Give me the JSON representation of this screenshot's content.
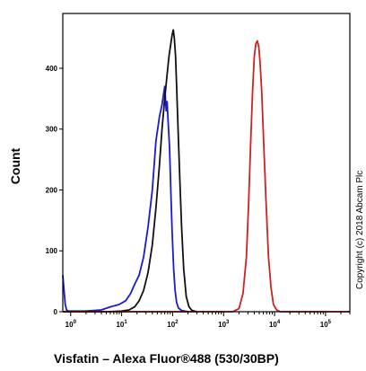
{
  "chart_data": {
    "type": "line",
    "xlabel": "Visfatin – Alexa Fluor®488 (530/30BP)",
    "ylabel": "Count",
    "x_scale": "log",
    "xlim": [
      0.7,
      300000
    ],
    "ylim": [
      0,
      490
    ],
    "y_ticks": [
      0,
      100,
      200,
      300,
      400
    ],
    "x_ticks": [
      {
        "value": 1,
        "base": "10",
        "exp": "0"
      },
      {
        "value": 10,
        "base": "10",
        "exp": "1"
      },
      {
        "value": 100,
        "base": "10",
        "exp": "2"
      },
      {
        "value": 1000,
        "base": "10",
        "exp": "3"
      },
      {
        "value": 10000,
        "base": "10",
        "exp": "4"
      },
      {
        "value": 100000,
        "base": "10",
        "exp": "5"
      }
    ],
    "grid": false,
    "series": [
      {
        "color": "#1a1ad6",
        "x": [
          0.7,
          0.74,
          0.78,
          0.83,
          0.9,
          1.0,
          2.0,
          4.0,
          6.0,
          9.0,
          12.0,
          15.0,
          18.0,
          22.0,
          27.0,
          33.0,
          40.0,
          47.0,
          55.0,
          62.0,
          70.0,
          75.0,
          78.0,
          82.0,
          87.0,
          92.0,
          98.0,
          105.0,
          112.0,
          120.0,
          130.0,
          150.0,
          200.0
        ],
        "y": [
          60,
          35,
          12,
          3,
          1,
          1,
          1,
          3,
          8,
          12,
          18,
          30,
          45,
          60,
          90,
          140,
          200,
          280,
          320,
          340,
          370,
          330,
          345,
          310,
          270,
          200,
          130,
          70,
          35,
          15,
          6,
          2,
          0
        ]
      },
      {
        "color": "#111111",
        "x": [
          0.7,
          5.0,
          10.0,
          14.0,
          18.0,
          22.0,
          27.0,
          33.0,
          40.0,
          47.0,
          55.0,
          62.0,
          70.0,
          78.0,
          85.0,
          92.0,
          98.0,
          103.0,
          108.0,
          114.0,
          120.0,
          128.0,
          138.0,
          150.0,
          165.0,
          185.0,
          210.0,
          240.0,
          300.0
        ],
        "y": [
          0,
          0,
          1,
          3,
          8,
          18,
          35,
          65,
          110,
          170,
          240,
          300,
          350,
          390,
          420,
          440,
          455,
          463,
          450,
          420,
          370,
          300,
          220,
          140,
          70,
          25,
          8,
          2,
          0
        ]
      },
      {
        "color": "#cc2222",
        "x": [
          0.7,
          1500.0,
          2000.0,
          2400.0,
          2800.0,
          3100.0,
          3400.0,
          3700.0,
          4000.0,
          4300.0,
          4600.0,
          4900.0,
          5200.0,
          5600.0,
          6100.0,
          6800.0,
          7600.0,
          8500.0,
          9500.0,
          11000.0,
          13000.0,
          300000.0
        ],
        "y": [
          0,
          0,
          5,
          30,
          90,
          180,
          280,
          360,
          420,
          440,
          445,
          435,
          410,
          360,
          280,
          180,
          90,
          40,
          12,
          3,
          0,
          0
        ]
      }
    ]
  },
  "watermark": "Copyright (c) 2018 Abcam Plc"
}
